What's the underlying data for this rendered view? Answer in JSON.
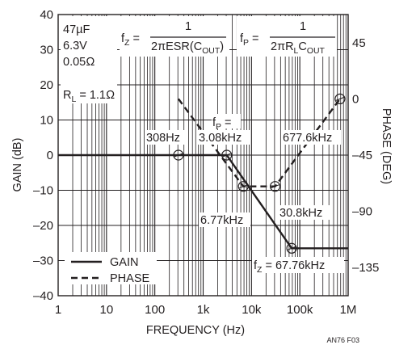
{
  "chart_data": {
    "type": "line",
    "xlabel": "FREQUENCY (Hz)",
    "ylabel_left": "GAIN (dB)",
    "ylabel_right": "PHASE (DEG)",
    "x_scale": "log",
    "xlim": [
      1,
      1000000
    ],
    "ylim_left": [
      -40,
      40
    ],
    "ylim_right": [
      -157.5,
      67.5
    ],
    "x_ticks": [
      "1",
      "10",
      "100",
      "1k",
      "10k",
      "100k",
      "1M"
    ],
    "y_ticks_left": [
      "40",
      "30",
      "20",
      "10",
      "0",
      "–10",
      "–20",
      "–30",
      "–40"
    ],
    "y_ticks_right": [
      "45",
      "0",
      "–45",
      "–90",
      "–135"
    ],
    "y_ticks_right_values": [
      45,
      0,
      -45,
      -90,
      -135
    ],
    "grid": true,
    "legend_position": "bottom-left",
    "series": [
      {
        "name": "GAIN",
        "style": "solid",
        "axis": "left",
        "points": [
          [
            1,
            0
          ],
          [
            3080,
            0
          ],
          [
            67760,
            -26.5
          ],
          [
            1000000,
            -26.5
          ]
        ]
      },
      {
        "name": "PHASE",
        "style": "dashed",
        "axis": "right",
        "points": [
          [
            308,
            0
          ],
          [
            6770,
            -70
          ],
          [
            30800,
            -70
          ],
          [
            677600,
            0
          ]
        ]
      }
    ],
    "markers": [
      {
        "x": 308,
        "y": 0,
        "axis": "left"
      },
      {
        "x": 3080,
        "y": 0,
        "axis": "left"
      },
      {
        "x": 6770,
        "y": -70,
        "axis": "right"
      },
      {
        "x": 30800,
        "y": -70,
        "axis": "right"
      },
      {
        "x": 67760,
        "y": -26.5,
        "axis": "left"
      },
      {
        "x": 677600,
        "y": 0,
        "axis": "right"
      }
    ],
    "annotations": {
      "lbl_308": "308Hz",
      "lbl_fp_top": "f",
      "lbl_fp_top_sub": "P",
      "lbl_fp_top_eq": " =",
      "lbl_3080": "3.08kHz",
      "lbl_6770": "6.77kHz",
      "lbl_30800": "30.8kHz",
      "lbl_677600": "677.6kHz",
      "lbl_fz": "f",
      "lbl_fz_sub": "Z",
      "lbl_fz_val": " = 67.76kHz"
    },
    "component_box": {
      "cap": "47µF",
      "volt": "6.3V",
      "esr": "0.05Ω",
      "rl_r": "R",
      "rl_sub": "L",
      "rl_val": " = 1.1Ω"
    },
    "formula_fz": {
      "f": "f",
      "sub": "Z",
      "eq": " =",
      "num": "1",
      "den_a": "2πESR(C",
      "den_sub": "OUT",
      "den_b": ")"
    },
    "formula_fp": {
      "f": "f",
      "sub": "P",
      "eq": " = ",
      "num": "1",
      "den_a": "2πR",
      "den_sub1": "L",
      "den_b": "C",
      "den_sub2": "OUT"
    },
    "legend": {
      "gain": "GAIN",
      "phase": "PHASE"
    },
    "figure_id": "AN76 F03"
  },
  "colors": {
    "ink": "#231f20",
    "grid": "#231f20",
    "background": "#ffffff"
  }
}
